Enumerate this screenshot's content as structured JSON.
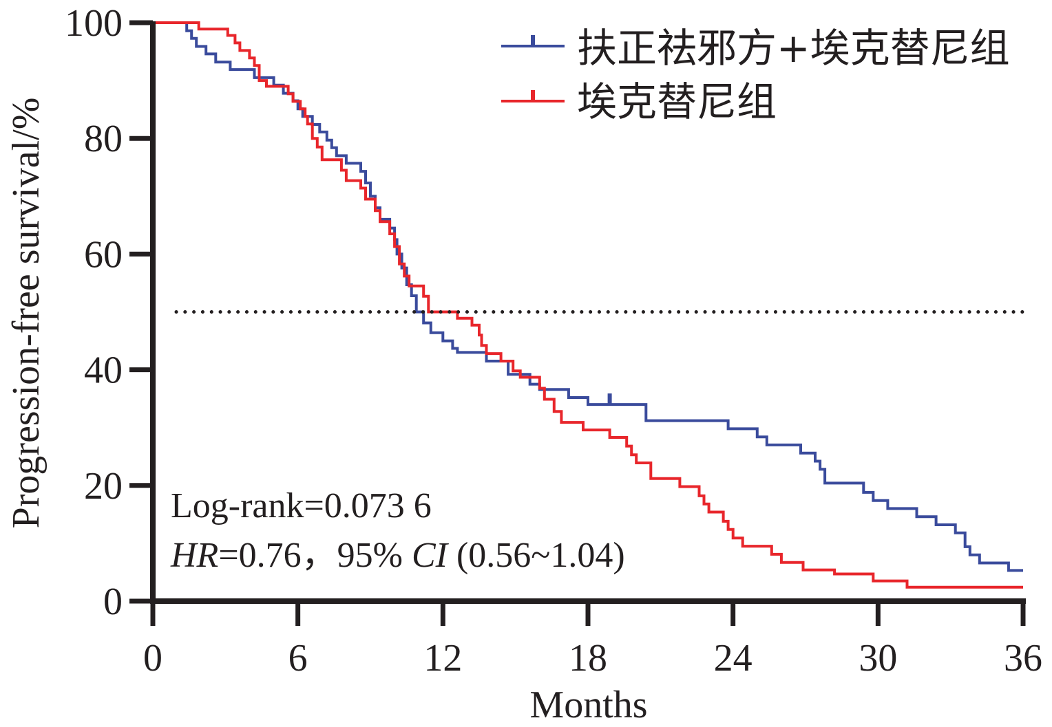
{
  "chart_data": {
    "type": "line",
    "subtype": "kaplan-meier-step",
    "xlabel": "Months",
    "ylabel": "Progression-free survival/%",
    "xlim": [
      0,
      36
    ],
    "ylim": [
      0,
      100
    ],
    "xticks": [
      0,
      6,
      12,
      18,
      24,
      30,
      36
    ],
    "yticks": [
      0,
      20,
      40,
      60,
      80,
      100
    ],
    "reference_line": {
      "y": 50,
      "style": "dotted"
    },
    "legend": {
      "position": "top-right"
    },
    "annotations": [
      {
        "id": "logrank",
        "text": "Log-rank=0.073 6"
      },
      {
        "id": "hr",
        "prefix": "HR",
        "middle": "=0.76，95% ",
        "ci": "CI",
        "suffix": " (0.56~1.04)"
      }
    ],
    "series": [
      {
        "name": "扶正祛邪方+埃克替尼组",
        "color": "#3a4b9c",
        "censor_marks": [
          {
            "x": 18.9,
            "y": 34
          }
        ],
        "points": [
          [
            0,
            100
          ],
          [
            1.4,
            100
          ],
          [
            1.4,
            98.6
          ],
          [
            1.6,
            98.6
          ],
          [
            1.6,
            97.3
          ],
          [
            1.8,
            97.3
          ],
          [
            1.8,
            95.9
          ],
          [
            2.2,
            95.9
          ],
          [
            2.2,
            94.6
          ],
          [
            2.6,
            94.6
          ],
          [
            2.6,
            93.2
          ],
          [
            3.2,
            93.2
          ],
          [
            3.2,
            91.9
          ],
          [
            4.2,
            91.9
          ],
          [
            4.2,
            90.5
          ],
          [
            5.0,
            90.5
          ],
          [
            5.0,
            89.2
          ],
          [
            5.4,
            89.2
          ],
          [
            5.4,
            87.8
          ],
          [
            5.8,
            87.8
          ],
          [
            5.8,
            86.5
          ],
          [
            6.0,
            86.5
          ],
          [
            6.0,
            85.1
          ],
          [
            6.2,
            85.1
          ],
          [
            6.2,
            83.8
          ],
          [
            6.6,
            83.8
          ],
          [
            6.6,
            82.4
          ],
          [
            6.9,
            82.4
          ],
          [
            6.9,
            81.1
          ],
          [
            7.2,
            81.1
          ],
          [
            7.2,
            79.7
          ],
          [
            7.4,
            79.7
          ],
          [
            7.4,
            78.4
          ],
          [
            7.6,
            78.4
          ],
          [
            7.6,
            77.0
          ],
          [
            8.0,
            77.0
          ],
          [
            8.0,
            75.7
          ],
          [
            8.6,
            75.7
          ],
          [
            8.6,
            74.3
          ],
          [
            8.8,
            74.3
          ],
          [
            8.8,
            72.3
          ],
          [
            9.0,
            72.3
          ],
          [
            9.0,
            70.0
          ],
          [
            9.2,
            70.0
          ],
          [
            9.2,
            68.0
          ],
          [
            9.4,
            68.0
          ],
          [
            9.4,
            66.0
          ],
          [
            9.8,
            66.0
          ],
          [
            9.8,
            64.5
          ],
          [
            10.0,
            64.5
          ],
          [
            10.0,
            62.5
          ],
          [
            10.1,
            62.5
          ],
          [
            10.1,
            60.0
          ],
          [
            10.3,
            60.0
          ],
          [
            10.3,
            57.6
          ],
          [
            10.5,
            57.6
          ],
          [
            10.5,
            54.7
          ],
          [
            10.7,
            54.7
          ],
          [
            10.7,
            52.8
          ],
          [
            10.9,
            52.8
          ],
          [
            10.9,
            50.0
          ],
          [
            11.2,
            50.0
          ],
          [
            11.2,
            48.1
          ],
          [
            11.5,
            48.1
          ],
          [
            11.5,
            46.4
          ],
          [
            12.0,
            46.4
          ],
          [
            12.0,
            45.0
          ],
          [
            12.4,
            45.0
          ],
          [
            12.4,
            43.7
          ],
          [
            12.6,
            43.7
          ],
          [
            12.6,
            43.0
          ],
          [
            13.8,
            43.0
          ],
          [
            13.8,
            41.5
          ],
          [
            14.7,
            41.5
          ],
          [
            14.7,
            39.2
          ],
          [
            15.6,
            39.2
          ],
          [
            15.6,
            37.5
          ],
          [
            16.0,
            37.5
          ],
          [
            16.0,
            36.6
          ],
          [
            17.2,
            36.6
          ],
          [
            17.2,
            35.2
          ],
          [
            18.0,
            35.2
          ],
          [
            18.0,
            34.0
          ],
          [
            20.4,
            34.0
          ],
          [
            20.4,
            31.2
          ],
          [
            23.8,
            31.2
          ],
          [
            23.8,
            29.8
          ],
          [
            25.0,
            29.8
          ],
          [
            25.0,
            28.4
          ],
          [
            25.4,
            28.4
          ],
          [
            25.4,
            27.0
          ],
          [
            26.8,
            27.0
          ],
          [
            26.8,
            25.6
          ],
          [
            27.4,
            25.6
          ],
          [
            27.4,
            24.2
          ],
          [
            27.6,
            24.2
          ],
          [
            27.6,
            22.8
          ],
          [
            27.8,
            22.8
          ],
          [
            27.8,
            20.4
          ],
          [
            29.4,
            20.4
          ],
          [
            29.4,
            18.8
          ],
          [
            29.8,
            18.8
          ],
          [
            29.8,
            17.4
          ],
          [
            30.4,
            17.4
          ],
          [
            30.4,
            16.0
          ],
          [
            31.6,
            16.0
          ],
          [
            31.6,
            14.6
          ],
          [
            32.4,
            14.6
          ],
          [
            32.4,
            13.2
          ],
          [
            33.2,
            13.2
          ],
          [
            33.2,
            11.8
          ],
          [
            33.6,
            11.8
          ],
          [
            33.6,
            9.4
          ],
          [
            33.8,
            9.4
          ],
          [
            33.8,
            8.0
          ],
          [
            34.2,
            8.0
          ],
          [
            34.2,
            6.6
          ],
          [
            35.4,
            6.6
          ],
          [
            35.4,
            5.3
          ],
          [
            36,
            5.3
          ]
        ]
      },
      {
        "name": "埃克替尼组",
        "color": "#e8262b",
        "censor_marks": [],
        "points": [
          [
            0,
            100
          ],
          [
            1.9,
            100
          ],
          [
            1.9,
            98.9
          ],
          [
            3.1,
            98.9
          ],
          [
            3.1,
            97.8
          ],
          [
            3.4,
            97.8
          ],
          [
            3.4,
            96.5
          ],
          [
            3.6,
            96.5
          ],
          [
            3.6,
            95.2
          ],
          [
            4.0,
            95.2
          ],
          [
            4.0,
            93.9
          ],
          [
            4.2,
            93.9
          ],
          [
            4.2,
            92.6
          ],
          [
            4.4,
            92.6
          ],
          [
            4.4,
            90.0
          ],
          [
            4.7,
            90.0
          ],
          [
            4.7,
            89.0
          ],
          [
            5.6,
            89.0
          ],
          [
            5.6,
            87.7
          ],
          [
            5.8,
            87.7
          ],
          [
            5.8,
            86.4
          ],
          [
            6.1,
            86.4
          ],
          [
            6.1,
            85.1
          ],
          [
            6.3,
            85.1
          ],
          [
            6.3,
            83.8
          ],
          [
            6.4,
            83.8
          ],
          [
            6.4,
            82.5
          ],
          [
            6.6,
            82.5
          ],
          [
            6.6,
            80.0
          ],
          [
            6.8,
            80.0
          ],
          [
            6.8,
            78.5
          ],
          [
            7.0,
            78.5
          ],
          [
            7.0,
            76.3
          ],
          [
            7.8,
            76.3
          ],
          [
            7.8,
            74.5
          ],
          [
            8.0,
            74.5
          ],
          [
            8.0,
            72.7
          ],
          [
            8.6,
            72.7
          ],
          [
            8.6,
            71.4
          ],
          [
            8.8,
            71.4
          ],
          [
            8.8,
            69.5
          ],
          [
            9.2,
            69.5
          ],
          [
            9.2,
            67.5
          ],
          [
            9.4,
            67.5
          ],
          [
            9.4,
            65.6
          ],
          [
            9.8,
            65.6
          ],
          [
            9.8,
            63.5
          ],
          [
            10.0,
            63.5
          ],
          [
            10.0,
            61.3
          ],
          [
            10.2,
            61.3
          ],
          [
            10.2,
            58.3
          ],
          [
            10.4,
            58.3
          ],
          [
            10.4,
            56.2
          ],
          [
            10.6,
            56.2
          ],
          [
            10.6,
            54.5
          ],
          [
            11.2,
            54.5
          ],
          [
            11.2,
            52.7
          ],
          [
            11.4,
            52.7
          ],
          [
            11.4,
            50.0
          ],
          [
            12.6,
            50.0
          ],
          [
            12.6,
            48.9
          ],
          [
            13.2,
            48.9
          ],
          [
            13.2,
            47.7
          ],
          [
            13.5,
            47.7
          ],
          [
            13.5,
            46.0
          ],
          [
            13.6,
            46.0
          ],
          [
            13.6,
            44.2
          ],
          [
            13.8,
            44.2
          ],
          [
            13.8,
            42.8
          ],
          [
            14.4,
            42.8
          ],
          [
            14.4,
            41.5
          ],
          [
            14.9,
            41.5
          ],
          [
            14.9,
            39.8
          ],
          [
            15.2,
            39.8
          ],
          [
            15.2,
            38.7
          ],
          [
            16.0,
            38.7
          ],
          [
            16.0,
            36.8
          ],
          [
            16.2,
            36.8
          ],
          [
            16.2,
            34.9
          ],
          [
            16.6,
            34.9
          ],
          [
            16.6,
            32.8
          ],
          [
            16.9,
            32.8
          ],
          [
            16.9,
            30.9
          ],
          [
            17.8,
            30.9
          ],
          [
            17.8,
            29.6
          ],
          [
            18.9,
            29.6
          ],
          [
            18.9,
            28.3
          ],
          [
            19.6,
            28.3
          ],
          [
            19.6,
            26.8
          ],
          [
            19.8,
            26.8
          ],
          [
            19.8,
            25.3
          ],
          [
            20.0,
            25.3
          ],
          [
            20.0,
            23.9
          ],
          [
            20.6,
            23.9
          ],
          [
            20.6,
            21.2
          ],
          [
            21.8,
            21.2
          ],
          [
            21.8,
            19.8
          ],
          [
            22.6,
            19.8
          ],
          [
            22.6,
            18.2
          ],
          [
            22.8,
            18.2
          ],
          [
            22.8,
            16.8
          ],
          [
            23.0,
            16.8
          ],
          [
            23.0,
            15.4
          ],
          [
            23.6,
            15.4
          ],
          [
            23.6,
            13.8
          ],
          [
            23.8,
            13.8
          ],
          [
            23.8,
            12.4
          ],
          [
            24.0,
            12.4
          ],
          [
            24.0,
            10.9
          ],
          [
            24.4,
            10.9
          ],
          [
            24.4,
            9.5
          ],
          [
            25.6,
            9.5
          ],
          [
            25.6,
            8.1
          ],
          [
            26.0,
            8.1
          ],
          [
            26.0,
            6.7
          ],
          [
            26.9,
            6.7
          ],
          [
            26.9,
            5.4
          ],
          [
            28.2,
            5.4
          ],
          [
            28.2,
            4.7
          ],
          [
            29.8,
            4.7
          ],
          [
            29.8,
            3.5
          ],
          [
            31.2,
            3.5
          ],
          [
            31.2,
            2.4
          ],
          [
            36,
            2.4
          ]
        ]
      }
    ]
  }
}
